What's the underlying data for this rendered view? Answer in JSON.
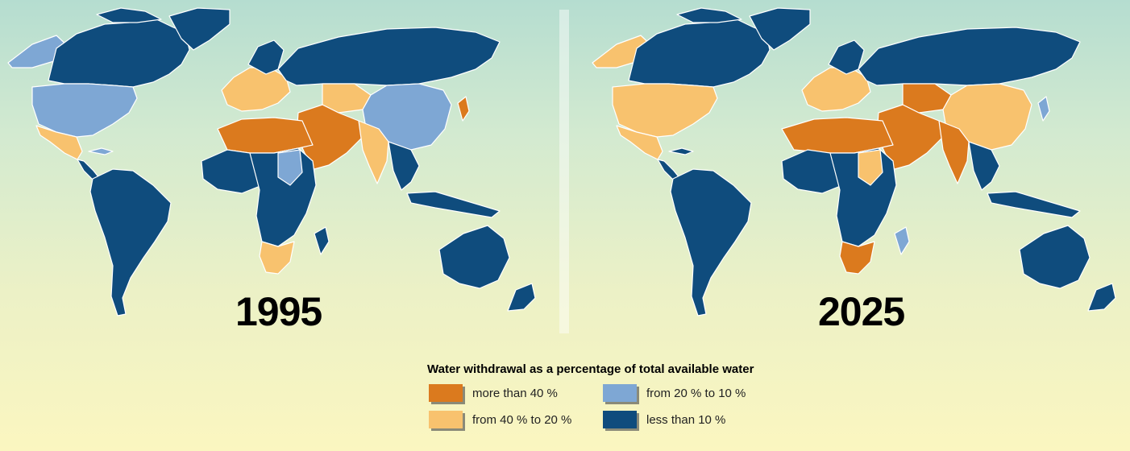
{
  "maps": [
    {
      "year": "1995"
    },
    {
      "year": "2025"
    }
  ],
  "legend": {
    "title": "Water withdrawal as a percentage of total available water",
    "items": [
      {
        "label": "more than 40 %",
        "color": "#db7a1e"
      },
      {
        "label": "from 40 % to 20 %",
        "color": "#f8c26e"
      },
      {
        "label": "from 20 % to 10 %",
        "color": "#7ea7d4"
      },
      {
        "label": "less than 10 %",
        "color": "#0f4c7d"
      }
    ]
  }
}
